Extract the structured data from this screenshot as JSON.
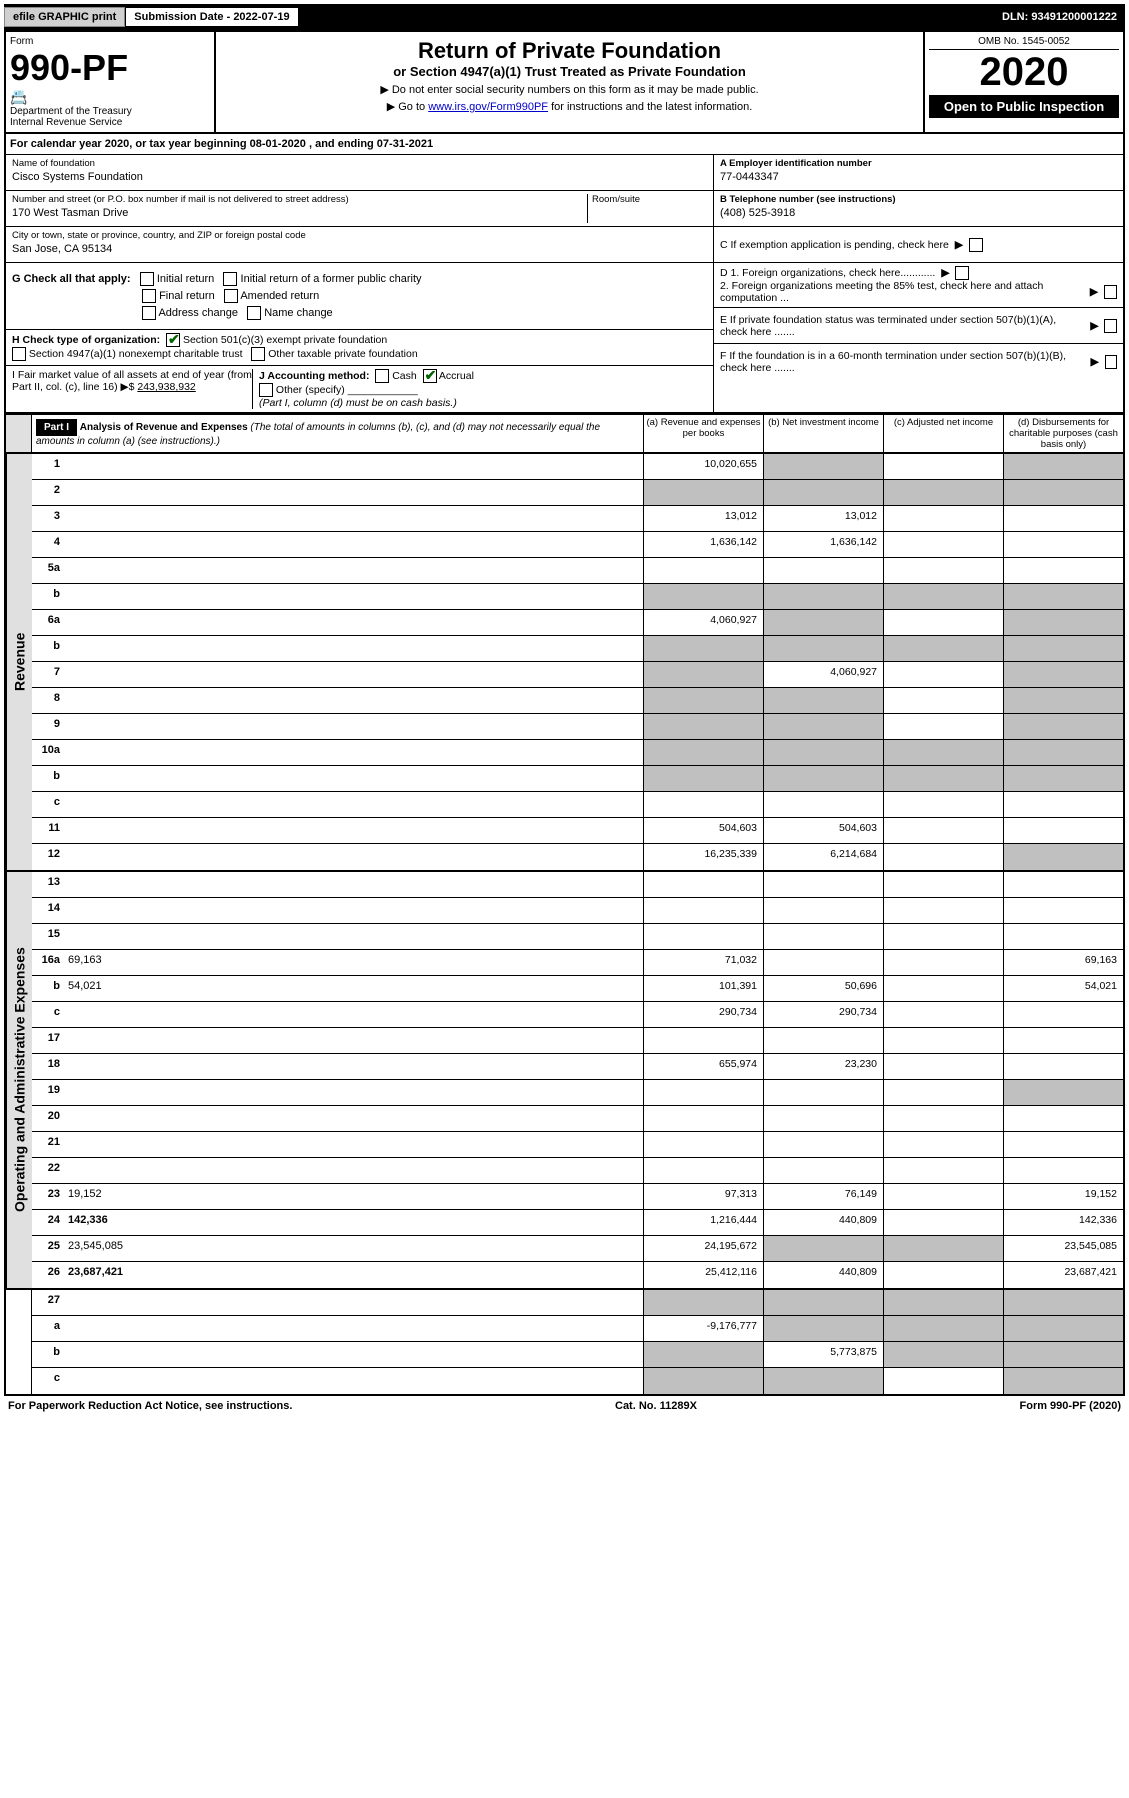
{
  "top": {
    "efile": "efile GRAPHIC print",
    "sub_date_lbl": "Submission Date - 2022-07-19",
    "dln": "DLN: 93491200001222"
  },
  "header": {
    "form": "Form",
    "form_num": "990-PF",
    "dept": "Department of the Treasury",
    "irs": "Internal Revenue Service",
    "title": "Return of Private Foundation",
    "subtitle": "or Section 4947(a)(1) Trust Treated as Private Foundation",
    "instr1": "▶ Do not enter social security numbers on this form as it may be made public.",
    "instr2": "▶ Go to www.irs.gov/Form990PF for instructions and the latest information.",
    "link": "www.irs.gov/Form990PF",
    "omb": "OMB No. 1545-0052",
    "year": "2020",
    "open": "Open to Public Inspection"
  },
  "cal": "For calendar year 2020, or tax year beginning 08-01-2020                                      , and ending 07-31-2021",
  "info": {
    "name_lbl": "Name of foundation",
    "name": "Cisco Systems Foundation",
    "addr_lbl": "Number and street (or P.O. box number if mail is not delivered to street address)",
    "addr": "170 West Tasman Drive",
    "room_lbl": "Room/suite",
    "city_lbl": "City or town, state or province, country, and ZIP or foreign postal code",
    "city": "San Jose, CA  95134",
    "a_lbl": "A Employer identification number",
    "a_val": "77-0443347",
    "b_lbl": "B Telephone number (see instructions)",
    "b_val": "(408) 525-3918",
    "c_lbl": "C If exemption application is pending, check here",
    "d1": "D 1. Foreign organizations, check here............",
    "d2": "2. Foreign organizations meeting the 85% test, check here and attach computation ...",
    "e_lbl": "E  If private foundation status was terminated under section 507(b)(1)(A), check here .......",
    "f_lbl": "F  If the foundation is in a 60-month termination under section 507(b)(1)(B), check here .......",
    "g_lbl": "G Check all that apply:",
    "g_opts": [
      "Initial return",
      "Initial return of a former public charity",
      "Final return",
      "Amended return",
      "Address change",
      "Name change"
    ],
    "h_lbl": "H Check type of organization:",
    "h1": "Section 501(c)(3) exempt private foundation",
    "h2": "Section 4947(a)(1) nonexempt charitable trust",
    "h3": "Other taxable private foundation",
    "i_lbl": "I Fair market value of all assets at end of year (from Part II, col. (c), line 16) ▶$",
    "i_val": "243,938,932",
    "j_lbl": "J Accounting method:",
    "j_cash": "Cash",
    "j_acc": "Accrual",
    "j_other": "Other (specify)",
    "j_note": "(Part I, column (d) must be on cash basis.)"
  },
  "part1": {
    "hdr": "Part I",
    "title": "Analysis of Revenue and Expenses",
    "note": "(The total of amounts in columns (b), (c), and (d) may not necessarily equal the amounts in column (a) (see instructions).)",
    "col_a": "(a)   Revenue and expenses per books",
    "col_b": "(b)   Net investment income",
    "col_c": "(c)   Adjusted net income",
    "col_d": "(d)   Disbursements for charitable purposes (cash basis only)"
  },
  "side": {
    "rev": "Revenue",
    "exp": "Operating and Administrative Expenses"
  },
  "rows": {
    "r1": {
      "n": "1",
      "d": "",
      "a": "10,020,655",
      "b": "",
      "c": ""
    },
    "r2": {
      "n": "2",
      "d": "",
      "a": "",
      "b": "",
      "c": ""
    },
    "r3": {
      "n": "3",
      "d": "",
      "a": "13,012",
      "b": "13,012",
      "c": ""
    },
    "r4": {
      "n": "4",
      "d": "",
      "a": "1,636,142",
      "b": "1,636,142",
      "c": ""
    },
    "r5a": {
      "n": "5a",
      "d": "",
      "a": "",
      "b": "",
      "c": ""
    },
    "r5b": {
      "n": "b",
      "d": "",
      "a": "",
      "b": "",
      "c": ""
    },
    "r6a": {
      "n": "6a",
      "d": "",
      "a": "4,060,927",
      "b": "",
      "c": ""
    },
    "r6b": {
      "n": "b",
      "d": "",
      "a": "",
      "b": "",
      "c": ""
    },
    "r7": {
      "n": "7",
      "d": "",
      "a": "",
      "b": "4,060,927",
      "c": ""
    },
    "r8": {
      "n": "8",
      "d": "",
      "a": "",
      "b": "",
      "c": ""
    },
    "r9": {
      "n": "9",
      "d": "",
      "a": "",
      "b": "",
      "c": ""
    },
    "r10a": {
      "n": "10a",
      "d": "",
      "a": "",
      "b": "",
      "c": ""
    },
    "r10b": {
      "n": "b",
      "d": "",
      "a": "",
      "b": "",
      "c": ""
    },
    "r10c": {
      "n": "c",
      "d": "",
      "a": "",
      "b": "",
      "c": ""
    },
    "r11": {
      "n": "11",
      "d": "",
      "a": "504,603",
      "b": "504,603",
      "c": ""
    },
    "r12": {
      "n": "12",
      "d": "",
      "a": "16,235,339",
      "b": "6,214,684",
      "c": "",
      "bold": true
    },
    "r13": {
      "n": "13",
      "d": "",
      "a": "",
      "b": "",
      "c": ""
    },
    "r14": {
      "n": "14",
      "d": "",
      "a": "",
      "b": "",
      "c": ""
    },
    "r15": {
      "n": "15",
      "d": "",
      "a": "",
      "b": "",
      "c": ""
    },
    "r16a": {
      "n": "16a",
      "d": "69,163",
      "a": "71,032",
      "b": "",
      "c": ""
    },
    "r16b": {
      "n": "b",
      "d": "54,021",
      "a": "101,391",
      "b": "50,696",
      "c": ""
    },
    "r16c": {
      "n": "c",
      "d": "",
      "a": "290,734",
      "b": "290,734",
      "c": ""
    },
    "r17": {
      "n": "17",
      "d": "",
      "a": "",
      "b": "",
      "c": ""
    },
    "r18": {
      "n": "18",
      "d": "",
      "a": "655,974",
      "b": "23,230",
      "c": ""
    },
    "r19": {
      "n": "19",
      "d": "",
      "a": "",
      "b": "",
      "c": ""
    },
    "r20": {
      "n": "20",
      "d": "",
      "a": "",
      "b": "",
      "c": ""
    },
    "r21": {
      "n": "21",
      "d": "",
      "a": "",
      "b": "",
      "c": ""
    },
    "r22": {
      "n": "22",
      "d": "",
      "a": "",
      "b": "",
      "c": ""
    },
    "r23": {
      "n": "23",
      "d": "19,152",
      "a": "97,313",
      "b": "76,149",
      "c": ""
    },
    "r24": {
      "n": "24",
      "d": "142,336",
      "a": "1,216,444",
      "b": "440,809",
      "c": "",
      "bold": true
    },
    "r25": {
      "n": "25",
      "d": "23,545,085",
      "a": "24,195,672",
      "b": "",
      "c": ""
    },
    "r26": {
      "n": "26",
      "d": "23,687,421",
      "a": "25,412,116",
      "b": "440,809",
      "c": "",
      "bold": true
    },
    "r27": {
      "n": "27",
      "d": "",
      "a": "",
      "b": "",
      "c": ""
    },
    "r27a": {
      "n": "a",
      "d": "",
      "a": "-9,176,777",
      "b": "",
      "c": "",
      "bold": true
    },
    "r27b": {
      "n": "b",
      "d": "",
      "a": "",
      "b": "5,773,875",
      "c": "",
      "bold": true
    },
    "r27c": {
      "n": "c",
      "d": "",
      "a": "",
      "b": "",
      "c": "",
      "bold": true
    }
  },
  "grey_cells": {
    "r1": [
      "b",
      "d"
    ],
    "r2": [
      "a",
      "b",
      "c",
      "d"
    ],
    "r5b": [
      "a",
      "b",
      "c",
      "d"
    ],
    "r6a": [
      "b",
      "d"
    ],
    "r6b": [
      "a",
      "b",
      "c",
      "d"
    ],
    "r7": [
      "a",
      "d"
    ],
    "r8": [
      "a",
      "b",
      "d"
    ],
    "r9": [
      "a",
      "b",
      "d"
    ],
    "r10a": [
      "a",
      "b",
      "c",
      "d"
    ],
    "r10b": [
      "a",
      "b",
      "c",
      "d"
    ],
    "r12": [
      "d"
    ],
    "r19": [
      "d"
    ],
    "r25": [
      "b",
      "c"
    ],
    "r27": [
      "a",
      "b",
      "c",
      "d"
    ],
    "r27a": [
      "b",
      "c",
      "d"
    ],
    "r27b": [
      "a",
      "c",
      "d"
    ],
    "r27c": [
      "a",
      "b",
      "d"
    ]
  },
  "footer": {
    "left": "For Paperwork Reduction Act Notice, see instructions.",
    "mid": "Cat. No. 11289X",
    "right": "Form 990-PF (2020)"
  },
  "colors": {
    "black": "#000000",
    "grey": "#c0c0c0",
    "link": "#0000cc",
    "check": "#006400"
  }
}
